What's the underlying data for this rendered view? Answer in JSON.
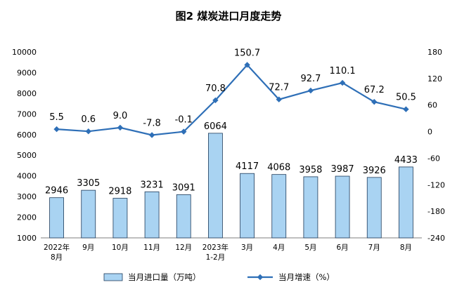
{
  "chart_data": {
    "type": "bar+line",
    "title": "图2  煤炭进口月度走势",
    "categories": [
      [
        "2022年",
        "8月"
      ],
      [
        "9月"
      ],
      [
        "10月"
      ],
      [
        "11月"
      ],
      [
        "12月"
      ],
      [
        "2023年",
        "1-2月"
      ],
      [
        "3月"
      ],
      [
        "4月"
      ],
      [
        "5月"
      ],
      [
        "6月"
      ],
      [
        "7月"
      ],
      [
        "8月"
      ]
    ],
    "series": [
      {
        "name": "当月进口量（万吨）",
        "type": "bar",
        "axis": "left",
        "color": "#a9d3f2",
        "values": [
          2946,
          3305,
          2918,
          3231,
          3091,
          6064,
          4117,
          4068,
          3958,
          3987,
          3926,
          4433
        ]
      },
      {
        "name": "当月增速（%）",
        "type": "line",
        "axis": "right",
        "color": "#2e6fb7",
        "values": [
          5.5,
          0.6,
          9.0,
          -7.8,
          -0.1,
          70.8,
          150.7,
          72.7,
          92.7,
          110.1,
          67.2,
          50.5
        ],
        "labels": [
          "5.5",
          "0.6",
          "9.0",
          "-7.8",
          "-0.1",
          "70.8",
          "150.7",
          "72.7",
          "92.7",
          "110.1",
          "67.2",
          "50.5"
        ]
      }
    ],
    "y_left": {
      "min": 1000,
      "max": 10000,
      "step": 1000,
      "ticks": [
        "1000",
        "2000",
        "3000",
        "4000",
        "5000",
        "6000",
        "7000",
        "8000",
        "9000",
        "10000"
      ]
    },
    "y_right": {
      "min": -240,
      "max": 180,
      "step": 60,
      "ticks": [
        "-240",
        "-180",
        "-120",
        "-60",
        "0",
        "60",
        "120",
        "180"
      ]
    },
    "grid": false,
    "legend": "bottom"
  }
}
